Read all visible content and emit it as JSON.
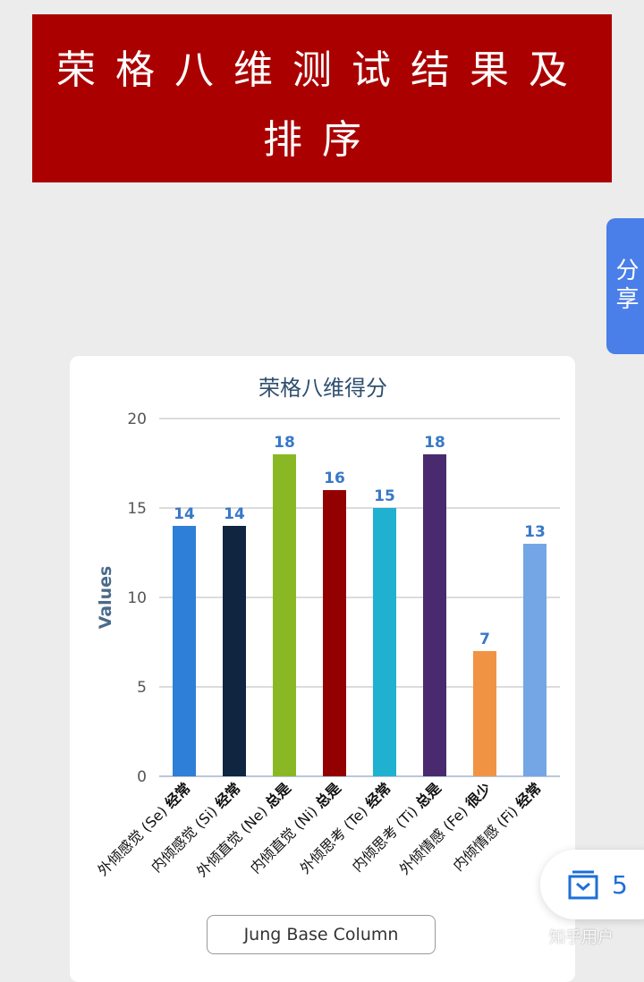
{
  "banner": {
    "line1": "荣格八维测试结果及",
    "line2": "排序"
  },
  "share_tab": {
    "label": "分享"
  },
  "chart_data": {
    "type": "bar",
    "title": "荣格八维得分",
    "xlabel": "",
    "ylabel": "Values",
    "ylim": [
      0,
      20
    ],
    "yticks": [
      0,
      5,
      10,
      15,
      20
    ],
    "grid": true,
    "categories": [
      {
        "name": "外倾感觉 (Se)",
        "freq": "经常"
      },
      {
        "name": "内倾感觉 (Si)",
        "freq": "经常"
      },
      {
        "name": "外倾直觉 (Ne)",
        "freq": "总是"
      },
      {
        "name": "内倾直觉 (Ni)",
        "freq": "总是"
      },
      {
        "name": "外倾思考 (Te)",
        "freq": "经常"
      },
      {
        "name": "内倾思考 (Ti)",
        "freq": "总是"
      },
      {
        "name": "外倾情感 (Fe)",
        "freq": "很少"
      },
      {
        "name": "内倾情感 (Fi)",
        "freq": "经常"
      }
    ],
    "values": [
      14,
      14,
      18,
      16,
      15,
      18,
      7,
      13
    ],
    "colors": [
      "#2e7fd8",
      "#0f2540",
      "#8ab824",
      "#930000",
      "#20b0d0",
      "#4a2a6e",
      "#f09444",
      "#74a6e6"
    ],
    "legend": {
      "label": "Jung Base Column",
      "placement": "bottom"
    }
  },
  "fab": {
    "count": "5",
    "icon": "collection-box-icon"
  },
  "watermark": {
    "text": "知乎用户"
  }
}
